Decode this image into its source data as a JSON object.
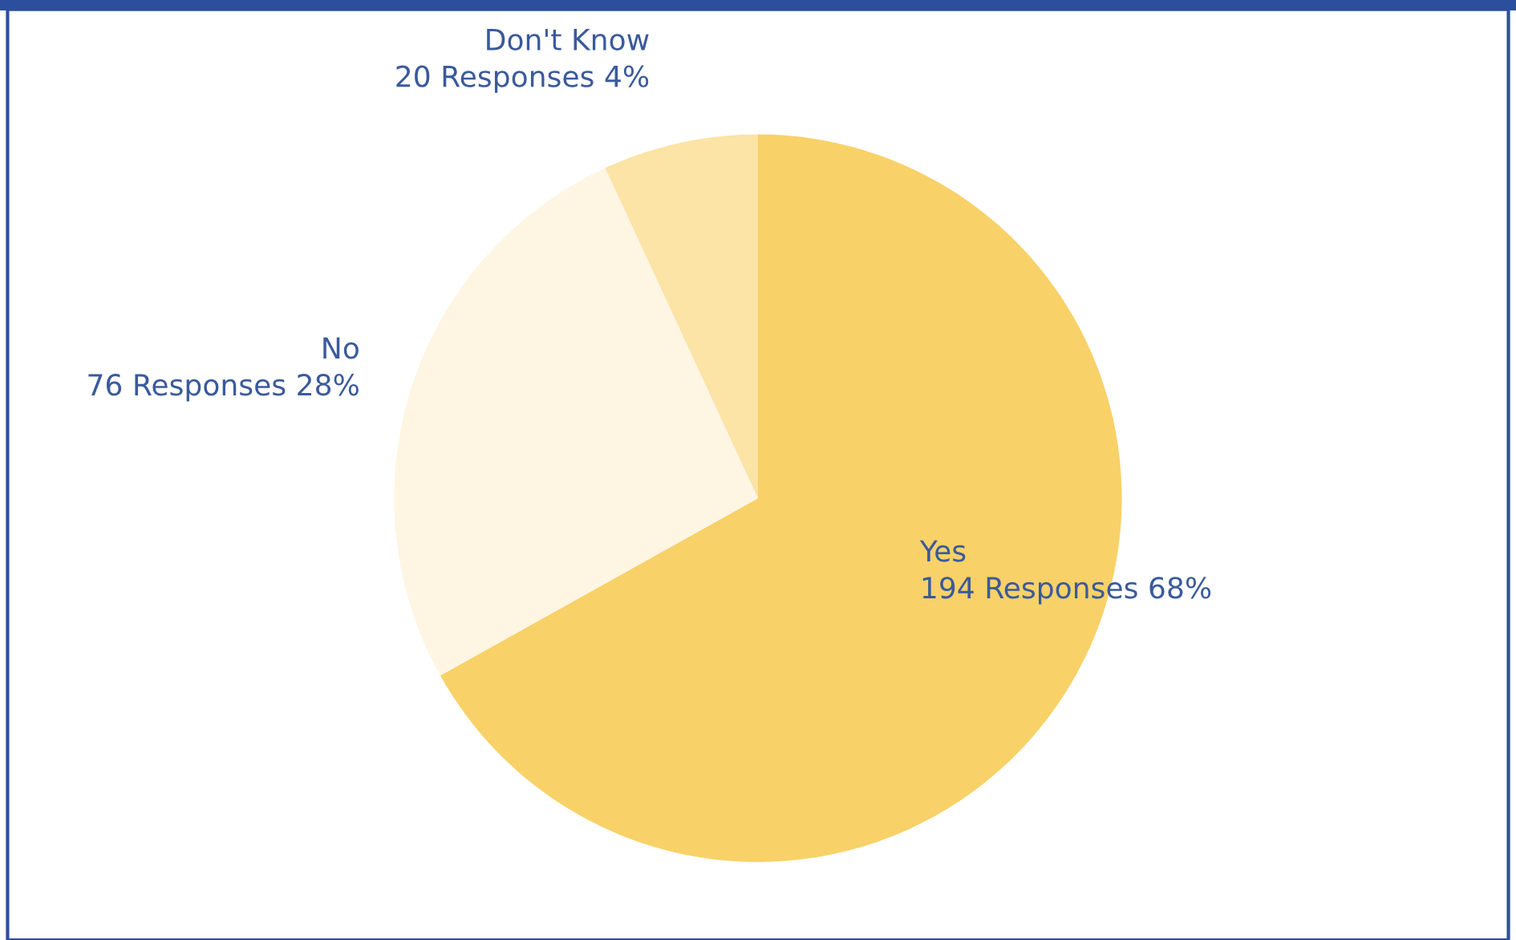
{
  "chart_data": {
    "type": "pie",
    "categories": [
      "Yes",
      "No",
      "Don't Know"
    ],
    "values": [
      194,
      76,
      20
    ],
    "value_labels": [
      "194 Responses 68%",
      "76 Responses 28%",
      "20 Responses 4%"
    ],
    "colors": [
      "#f8d168",
      "#fef5e3",
      "#fce3a6"
    ]
  }
}
